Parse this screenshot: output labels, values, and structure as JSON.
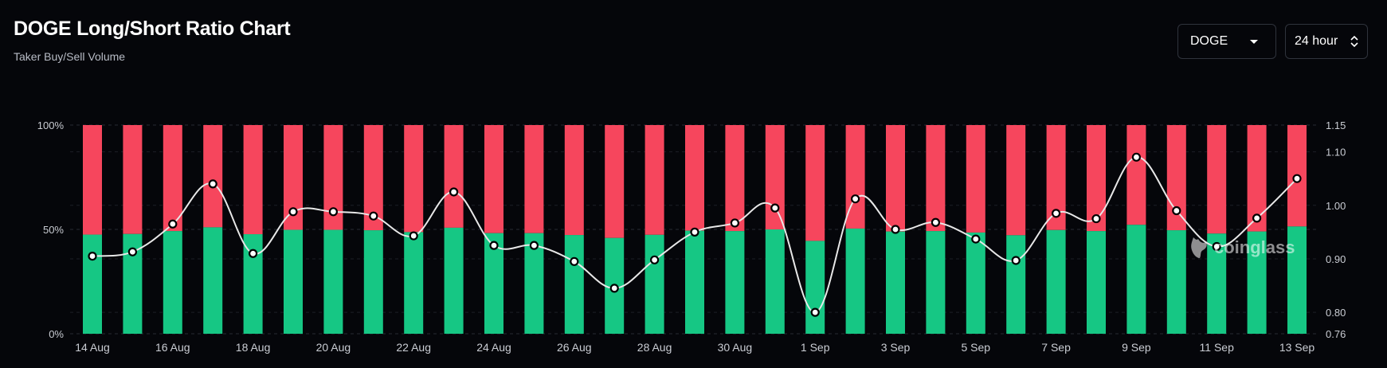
{
  "header": {
    "title": "DOGE Long/Short Ratio Chart",
    "subtitle": "Taker Buy/Sell Volume"
  },
  "controls": {
    "symbol_value": "DOGE",
    "period_value": "24 hour"
  },
  "watermark": {
    "text": "coinglass",
    "icon": "coinglass-logo-icon"
  },
  "colors": {
    "long": "#16c784",
    "short": "#f6465d",
    "line": "#e8e8e8",
    "background": "#05060a"
  },
  "chart_data": {
    "type": "bar",
    "stacked_percent": true,
    "x": [
      "14 Aug",
      "15 Aug",
      "16 Aug",
      "17 Aug",
      "18 Aug",
      "19 Aug",
      "20 Aug",
      "21 Aug",
      "22 Aug",
      "23 Aug",
      "24 Aug",
      "25 Aug",
      "26 Aug",
      "27 Aug",
      "28 Aug",
      "29 Aug",
      "30 Aug",
      "31 Aug",
      "1 Sep",
      "2 Sep",
      "3 Sep",
      "4 Sep",
      "5 Sep",
      "6 Sep",
      "7 Sep",
      "8 Sep",
      "9 Sep",
      "10 Sep",
      "11 Sep",
      "12 Sep",
      "13 Sep"
    ],
    "x_tick_labels": [
      "14 Aug",
      "16 Aug",
      "18 Aug",
      "20 Aug",
      "22 Aug",
      "24 Aug",
      "26 Aug",
      "28 Aug",
      "30 Aug",
      "1 Sep",
      "3 Sep",
      "5 Sep",
      "7 Sep",
      "9 Sep",
      "11 Sep",
      "13 Sep"
    ],
    "series": [
      {
        "type": "bar",
        "axis": "left",
        "values": [
          47.5,
          47.8,
          49.2,
          51.0,
          47.7,
          49.8,
          49.8,
          49.6,
          48.7,
          50.8,
          48.2,
          48.2,
          47.3,
          45.9,
          47.4,
          49.4,
          49.2,
          50.0,
          44.5,
          50.4,
          49.0,
          49.2,
          48.5,
          47.2,
          49.7,
          49.2,
          52.2,
          49.6,
          48.0,
          49.0,
          51.4
        ]
      },
      {
        "type": "bar",
        "axis": "left",
        "values": [
          52.5,
          52.2,
          50.8,
          49.0,
          52.3,
          50.2,
          50.2,
          50.4,
          51.3,
          49.2,
          51.8,
          51.8,
          52.7,
          54.1,
          52.6,
          50.6,
          50.8,
          50.0,
          55.5,
          49.6,
          51.0,
          50.8,
          51.5,
          52.8,
          50.3,
          50.8,
          47.8,
          50.4,
          52.0,
          51.0,
          48.6
        ]
      },
      {
        "type": "line",
        "axis": "right",
        "values": [
          0.905,
          0.913,
          0.965,
          1.04,
          0.91,
          0.988,
          0.988,
          0.98,
          0.943,
          1.025,
          0.925,
          0.925,
          0.895,
          0.845,
          0.898,
          0.95,
          0.967,
          0.995,
          0.8,
          1.012,
          0.955,
          0.968,
          0.937,
          0.897,
          0.985,
          0.975,
          1.09,
          0.99,
          0.923,
          0.976,
          1.05
        ]
      }
    ],
    "y_left": {
      "ticks": [
        "0%",
        "50%",
        "100%"
      ],
      "range": [
        0,
        100
      ]
    },
    "y_right": {
      "ticks": [
        "0.76",
        "0.80",
        "0.90",
        "1.00",
        "1.10",
        "1.15"
      ],
      "range": [
        0.76,
        1.15
      ]
    },
    "grid": true
  }
}
